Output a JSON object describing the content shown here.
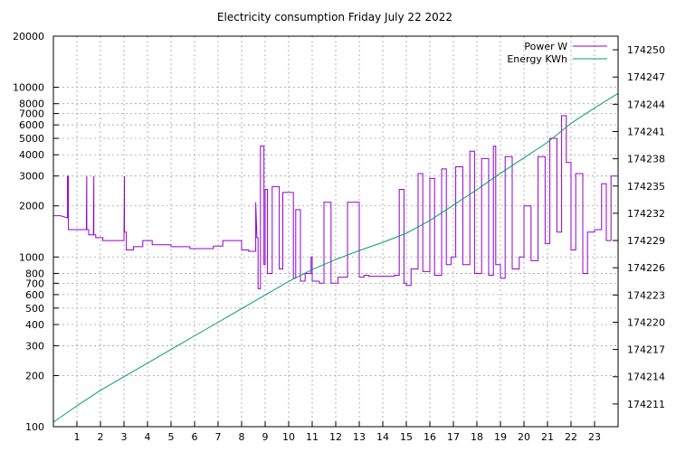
{
  "chart_data": {
    "type": "line",
    "title": "Electricity consumption Friday July 22 2022",
    "xlabel": "",
    "ylabel": "",
    "xlim": [
      0,
      24
    ],
    "ylim": [
      100,
      20000
    ],
    "y_scale": "log",
    "y2lim": [
      174208.5,
      174251.5
    ],
    "grid": true,
    "legend_position": "top-right",
    "colors": {
      "power": "#9400d3",
      "energy": "#009e73"
    },
    "x_ticks": [
      "1",
      "2",
      "3",
      "4",
      "5",
      "6",
      "7",
      "8",
      "9",
      "10",
      "11",
      "12",
      "13",
      "14",
      "15",
      "16",
      "17",
      "18",
      "19",
      "20",
      "21",
      "22",
      "23"
    ],
    "y_ticks": [
      "100",
      "200",
      "300",
      "400",
      "500",
      "600",
      "700",
      "800",
      "1000",
      "2000",
      "3000",
      "4000",
      "5000",
      "6000",
      "7000",
      "8000",
      "10000",
      "20000"
    ],
    "y2_ticks": [
      "174211",
      "174214",
      "174217",
      "174220",
      "174223",
      "174226",
      "174229",
      "174232",
      "174235",
      "174238",
      "174241",
      "174244",
      "174247",
      "174250"
    ],
    "series": [
      {
        "name": "Power W",
        "axis": "y1",
        "x": [
          0,
          0.3,
          0.6,
          0.6,
          0.64,
          0.64,
          1.4,
          1.42,
          1.42,
          1.5,
          1.5,
          1.7,
          1.72,
          1.72,
          1.8,
          1.8,
          2.1,
          2.1,
          3.0,
          3.02,
          3.02,
          3.1,
          3.1,
          3.4,
          3.4,
          3.8,
          3.8,
          4.2,
          4.2,
          5.0,
          5.0,
          5.8,
          5.8,
          6.8,
          6.8,
          7.2,
          7.2,
          8.0,
          8.0,
          8.3,
          8.3,
          8.6,
          8.6,
          8.65,
          8.7,
          8.7,
          8.8,
          8.8,
          8.95,
          8.95,
          9.0,
          9.0,
          9.1,
          9.1,
          9.3,
          9.3,
          9.6,
          9.6,
          9.75,
          9.75,
          10.2,
          10.2,
          10.3,
          10.3,
          10.5,
          10.5,
          10.7,
          10.7,
          10.95,
          10.95,
          11.0,
          11.0,
          11.3,
          11.3,
          11.5,
          11.5,
          11.8,
          11.8,
          12.1,
          12.1,
          12.5,
          12.5,
          13.0,
          13.0,
          13.2,
          13.2,
          13.4,
          13.4,
          14.5,
          14.5,
          14.7,
          14.7,
          14.9,
          14.9,
          15.0,
          15.0,
          15.2,
          15.2,
          15.5,
          15.5,
          15.7,
          15.7,
          16.0,
          16.0,
          16.2,
          16.2,
          16.5,
          16.5,
          16.7,
          16.7,
          16.9,
          16.9,
          17.1,
          17.1,
          17.4,
          17.4,
          17.7,
          17.7,
          17.9,
          17.9,
          18.2,
          18.2,
          18.5,
          18.5,
          18.7,
          18.7,
          18.8,
          18.8,
          19.0,
          19.0,
          19.2,
          19.2,
          19.5,
          19.5,
          19.8,
          19.8,
          20.0,
          20.0,
          20.3,
          20.3,
          20.6,
          20.6,
          20.9,
          20.9,
          21.1,
          21.1,
          21.4,
          21.4,
          21.6,
          21.6,
          21.8,
          21.8,
          22.0,
          22.0,
          22.2,
          22.2,
          22.5,
          22.5,
          22.7,
          22.7,
          23.0,
          23.0,
          23.3,
          23.3,
          23.5,
          23.5,
          23.7,
          23.7,
          24.0
        ],
        "values": [
          1750,
          1750,
          1700,
          3000,
          3000,
          1450,
          1450,
          3000,
          1450,
          1450,
          1350,
          1350,
          3000,
          1350,
          1350,
          1300,
          1300,
          1250,
          1250,
          3000,
          1400,
          1400,
          1100,
          1100,
          1150,
          1150,
          1250,
          1250,
          1180,
          1180,
          1150,
          1150,
          1120,
          1120,
          1160,
          1160,
          1250,
          1250,
          1100,
          1100,
          1080,
          1080,
          2100,
          1300,
          1300,
          650,
          650,
          4500,
          4500,
          900,
          900,
          2500,
          2500,
          800,
          800,
          2600,
          2600,
          850,
          850,
          2400,
          2400,
          750,
          750,
          1900,
          1900,
          720,
          720,
          800,
          800,
          1000,
          1000,
          720,
          720,
          700,
          700,
          2100,
          2100,
          700,
          700,
          760,
          760,
          2100,
          2100,
          760,
          760,
          780,
          780,
          770,
          770,
          780,
          780,
          2500,
          2500,
          700,
          700,
          680,
          680,
          850,
          850,
          3100,
          3100,
          820,
          820,
          2900,
          2900,
          780,
          780,
          3300,
          3300,
          900,
          900,
          1000,
          1000,
          3400,
          3400,
          900,
          900,
          4200,
          4200,
          800,
          800,
          3800,
          3800,
          780,
          780,
          4500,
          4500,
          900,
          900,
          750,
          750,
          3900,
          3900,
          850,
          850,
          1000,
          1000,
          2000,
          2000,
          950,
          950,
          3900,
          3900,
          1200,
          1200,
          5000,
          5000,
          1400,
          1400,
          6800,
          6800,
          3600,
          3600,
          1100,
          1100,
          3100,
          3100,
          800,
          800,
          1400,
          1400,
          1450,
          1450,
          2700,
          2700,
          1250,
          1250,
          3000,
          3000
        ]
      },
      {
        "name": "Energy KWh",
        "axis": "y2",
        "x": [
          0,
          1,
          2,
          3,
          4,
          5,
          6,
          7,
          8,
          9,
          10,
          11,
          12,
          13,
          14,
          15,
          16,
          17,
          18,
          19,
          20,
          21,
          22,
          23,
          24
        ],
        "values": [
          174209.0,
          174210.8,
          174212.5,
          174214.0,
          174215.5,
          174217.0,
          174218.5,
          174220.0,
          174221.5,
          174223.0,
          174224.5,
          174225.8,
          174226.9,
          174227.9,
          174228.8,
          174229.8,
          174231.2,
          174232.9,
          174234.6,
          174236.4,
          174238.1,
          174239.8,
          174241.9,
          174243.6,
          174245.2
        ]
      }
    ]
  }
}
